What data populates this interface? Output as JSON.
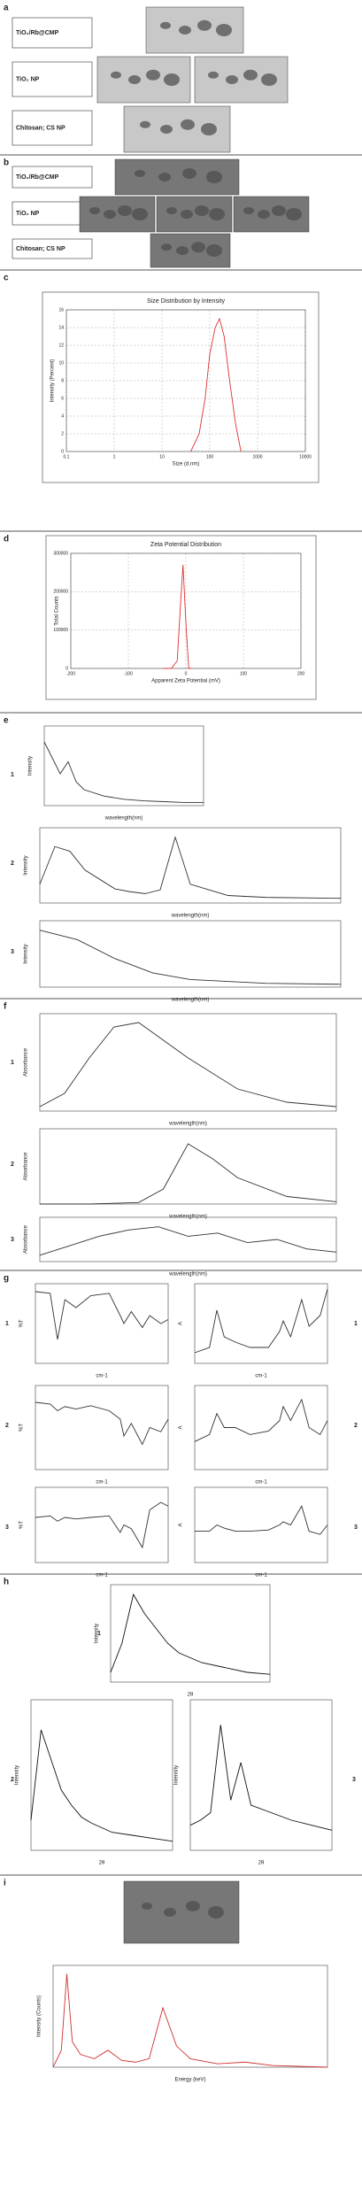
{
  "panel_labels": [
    "a",
    "b",
    "c",
    "d",
    "e",
    "f",
    "g",
    "h",
    "i"
  ],
  "row_labels": [
    "TiO₂/Rb@CMP",
    "TiO₂ NP",
    "Chitosan; CS NP"
  ],
  "numbers": [
    "1",
    "2",
    "3"
  ],
  "chart_data": [
    {
      "type": "line",
      "title": "Size Distribution by Intensity",
      "xlabel": "Size (d.nm)",
      "ylabel": "Intensity (Percent)",
      "log_x": true,
      "grid": true,
      "xlim": [
        0.1,
        10000
      ],
      "xticks": [
        0.1,
        1,
        10,
        100,
        1000,
        10000
      ],
      "ylim": [
        0,
        16
      ],
      "yticks": [
        0,
        2,
        4,
        6,
        8,
        10,
        12,
        14,
        16
      ],
      "x": [
        40,
        60,
        80,
        100,
        130,
        160,
        200,
        260,
        350,
        450
      ],
      "series": [
        {
          "color": "#e03030",
          "values": [
            0,
            2,
            6,
            11,
            14,
            15,
            13,
            8,
            3,
            0
          ]
        }
      ]
    },
    {
      "type": "line",
      "title": "Zeta Potential Distribution",
      "xlabel": "Apparent Zeta Potential (mV)",
      "ylabel": "Total Counts",
      "grid": true,
      "xlim": [
        -200,
        200
      ],
      "xticks": [
        -200,
        -100,
        0,
        100,
        200
      ],
      "ylim": [
        0,
        300000
      ],
      "yticks": [
        0,
        100000,
        200000,
        300000
      ],
      "x": [
        -40,
        -25,
        -15,
        -10,
        -5,
        0,
        5,
        10
      ],
      "series": [
        {
          "color": "#e03030",
          "values": [
            0,
            0,
            20000,
            150000,
            270000,
            120000,
            0,
            0
          ]
        }
      ]
    },
    {
      "type": "line",
      "xlabel": "wavelength(nm)",
      "ylabel": "Intensity",
      "xlim": [
        300,
        700
      ],
      "ylim": [
        0,
        100
      ],
      "x": [
        300,
        320,
        340,
        360,
        380,
        400,
        450,
        500,
        550,
        600,
        650,
        700
      ],
      "series": [
        {
          "color": "#333333",
          "values": [
            80,
            60,
            40,
            55,
            30,
            20,
            12,
            8,
            6,
            5,
            4,
            4
          ]
        }
      ]
    },
    {
      "type": "line",
      "xlabel": "wavelength(nm)",
      "ylabel": "Intensity",
      "xlim": [
        300,
        700
      ],
      "ylim": [
        0,
        80
      ],
      "x": [
        300,
        320,
        340,
        360,
        380,
        400,
        420,
        440,
        460,
        480,
        500,
        550,
        600,
        700
      ],
      "series": [
        {
          "color": "#333333",
          "values": [
            20,
            60,
            55,
            35,
            25,
            15,
            12,
            10,
            14,
            70,
            20,
            8,
            6,
            5
          ]
        }
      ]
    },
    {
      "type": "line",
      "xlabel": "wavelength(nm)",
      "ylabel": "Intensity",
      "xlim": [
        300,
        700
      ],
      "ylim": [
        0,
        70
      ],
      "x": [
        300,
        350,
        400,
        450,
        500,
        600,
        700
      ],
      "series": [
        {
          "color": "#333333",
          "values": [
            60,
            50,
            30,
            15,
            8,
            4,
            3
          ]
        }
      ]
    },
    {
      "type": "line",
      "xlabel": "wavelength(nm)",
      "ylabel": "Absorbance",
      "xlim": [
        200,
        800
      ],
      "ylim": [
        0,
        110
      ],
      "x": [
        200,
        250,
        300,
        350,
        400,
        450,
        500,
        600,
        700,
        800
      ],
      "series": [
        {
          "color": "#333333",
          "values": [
            5,
            20,
            60,
            95,
            100,
            80,
            60,
            25,
            10,
            5
          ]
        }
      ]
    },
    {
      "type": "line",
      "xlabel": "wavelength(nm)",
      "ylabel": "Absorbance",
      "xlim": [
        200,
        800
      ],
      "ylim": [
        0,
        100
      ],
      "x": [
        200,
        300,
        400,
        450,
        500,
        550,
        600,
        700,
        800
      ],
      "series": [
        {
          "color": "#333333",
          "values": [
            0,
            0,
            2,
            20,
            80,
            60,
            35,
            10,
            3
          ]
        }
      ]
    },
    {
      "type": "line",
      "xlabel": "wavelength(nm)",
      "ylabel": "Absorbance",
      "xlim": [
        300,
        800
      ],
      "ylim": [
        0,
        70
      ],
      "x": [
        300,
        350,
        400,
        450,
        500,
        550,
        600,
        650,
        700,
        750,
        800
      ],
      "series": [
        {
          "color": "#333333",
          "values": [
            10,
            25,
            40,
            50,
            55,
            40,
            45,
            30,
            35,
            20,
            15
          ]
        }
      ]
    },
    {
      "type": "line",
      "xlabel": "cm-1",
      "ylabel": "%T",
      "xlim": [
        4000,
        400
      ],
      "ylim": [
        0,
        100
      ],
      "x": [
        4000,
        3600,
        3400,
        3200,
        2900,
        2500,
        2000,
        1700,
        1600,
        1400,
        1100,
        900,
        600,
        400
      ],
      "series": [
        {
          "color": "#333333",
          "values": [
            90,
            88,
            30,
            80,
            70,
            85,
            88,
            60,
            50,
            65,
            45,
            60,
            50,
            55
          ]
        }
      ]
    },
    {
      "type": "line",
      "xlabel": "cm-1",
      "ylabel": "A",
      "xlim": [
        4000,
        400
      ],
      "ylim": [
        0,
        1.5
      ],
      "x": [
        4000,
        3600,
        3400,
        3200,
        2900,
        2500,
        2000,
        1700,
        1600,
        1400,
        1100,
        900,
        600,
        400
      ],
      "series": [
        {
          "color": "#333333",
          "values": [
            0.2,
            0.3,
            1.0,
            0.5,
            0.4,
            0.3,
            0.3,
            0.6,
            0.8,
            0.5,
            1.2,
            0.7,
            0.9,
            1.4
          ]
        }
      ]
    },
    {
      "type": "line",
      "xlabel": "cm-1",
      "ylabel": "%T",
      "xlim": [
        4000,
        400
      ],
      "ylim": [
        0,
        100
      ],
      "x": [
        4000,
        3600,
        3400,
        3200,
        2900,
        2500,
        2000,
        1700,
        1600,
        1400,
        1100,
        900,
        600,
        400
      ],
      "series": [
        {
          "color": "#333333",
          "values": [
            80,
            78,
            70,
            75,
            72,
            76,
            70,
            60,
            40,
            55,
            30,
            50,
            45,
            60
          ]
        }
      ]
    },
    {
      "type": "line",
      "xlabel": "cm-1",
      "ylabel": "A",
      "xlim": [
        4000,
        400
      ],
      "ylim": [
        0,
        1.2
      ],
      "x": [
        4000,
        3600,
        3400,
        3200,
        2900,
        2500,
        2000,
        1700,
        1600,
        1400,
        1100,
        900,
        600,
        400
      ],
      "series": [
        {
          "color": "#333333",
          "values": [
            0.4,
            0.5,
            0.8,
            0.6,
            0.6,
            0.5,
            0.55,
            0.7,
            0.9,
            0.7,
            1.0,
            0.6,
            0.5,
            0.7
          ]
        }
      ]
    },
    {
      "type": "line",
      "xlabel": "cm-1",
      "ylabel": "%T",
      "xlim": [
        4000,
        400
      ],
      "ylim": [
        0,
        100
      ],
      "x": [
        4000,
        3600,
        3400,
        3200,
        2900,
        2500,
        2000,
        1700,
        1600,
        1400,
        1100,
        900,
        600,
        400
      ],
      "series": [
        {
          "color": "#333333",
          "values": [
            60,
            62,
            55,
            60,
            58,
            60,
            62,
            40,
            50,
            45,
            20,
            70,
            80,
            75
          ]
        }
      ]
    },
    {
      "type": "line",
      "xlabel": "cm-1",
      "ylabel": "A",
      "xlim": [
        4000,
        400
      ],
      "ylim": [
        0,
        1.2
      ],
      "x": [
        4000,
        3600,
        3400,
        3200,
        2900,
        2500,
        2000,
        1700,
        1600,
        1400,
        1100,
        900,
        600,
        400
      ],
      "series": [
        {
          "color": "#333333",
          "values": [
            0.5,
            0.5,
            0.6,
            0.55,
            0.5,
            0.5,
            0.52,
            0.6,
            0.65,
            0.6,
            0.9,
            0.5,
            0.45,
            0.6
          ]
        }
      ]
    },
    {
      "type": "line",
      "xlabel": "2θ",
      "ylabel": "Intensity",
      "xlim": [
        10,
        80
      ],
      "ylim": [
        0,
        100
      ],
      "x": [
        10,
        15,
        20,
        25,
        30,
        35,
        40,
        50,
        60,
        70,
        80
      ],
      "series": [
        {
          "color": "#111111",
          "values": [
            10,
            40,
            90,
            70,
            55,
            40,
            30,
            20,
            15,
            10,
            8
          ]
        }
      ]
    },
    {
      "type": "line",
      "xlabel": "2θ",
      "ylabel": "Intensity",
      "xlim": [
        10,
        80
      ],
      "ylim": [
        0,
        100
      ],
      "x": [
        10,
        15,
        20,
        25,
        30,
        35,
        40,
        50,
        60,
        70,
        80
      ],
      "series": [
        {
          "color": "#111111",
          "values": [
            20,
            80,
            60,
            40,
            30,
            22,
            18,
            12,
            10,
            8,
            6
          ]
        }
      ]
    },
    {
      "type": "line",
      "xlabel": "2θ",
      "ylabel": "Intensity",
      "xlim": [
        10,
        80
      ],
      "ylim": [
        0,
        60
      ],
      "x": [
        10,
        15,
        20,
        25,
        30,
        35,
        40,
        50,
        60,
        70,
        80
      ],
      "series": [
        {
          "color": "#111111",
          "values": [
            10,
            12,
            15,
            50,
            20,
            35,
            18,
            15,
            12,
            10,
            8
          ]
        }
      ]
    },
    {
      "type": "line",
      "xlabel": "Energy (keV)",
      "ylabel": "Intensity (Counts)",
      "xlim": [
        0,
        10
      ],
      "ylim": [
        0,
        1200
      ],
      "x": [
        0,
        0.3,
        0.5,
        0.7,
        1,
        1.5,
        2,
        2.5,
        3,
        3.5,
        4,
        4.5,
        5,
        6,
        7,
        8,
        10
      ],
      "series": [
        {
          "color": "#d03030",
          "values": [
            0,
            200,
            1100,
            300,
            150,
            100,
            200,
            80,
            60,
            100,
            700,
            250,
            100,
            40,
            60,
            20,
            0
          ]
        }
      ]
    }
  ]
}
